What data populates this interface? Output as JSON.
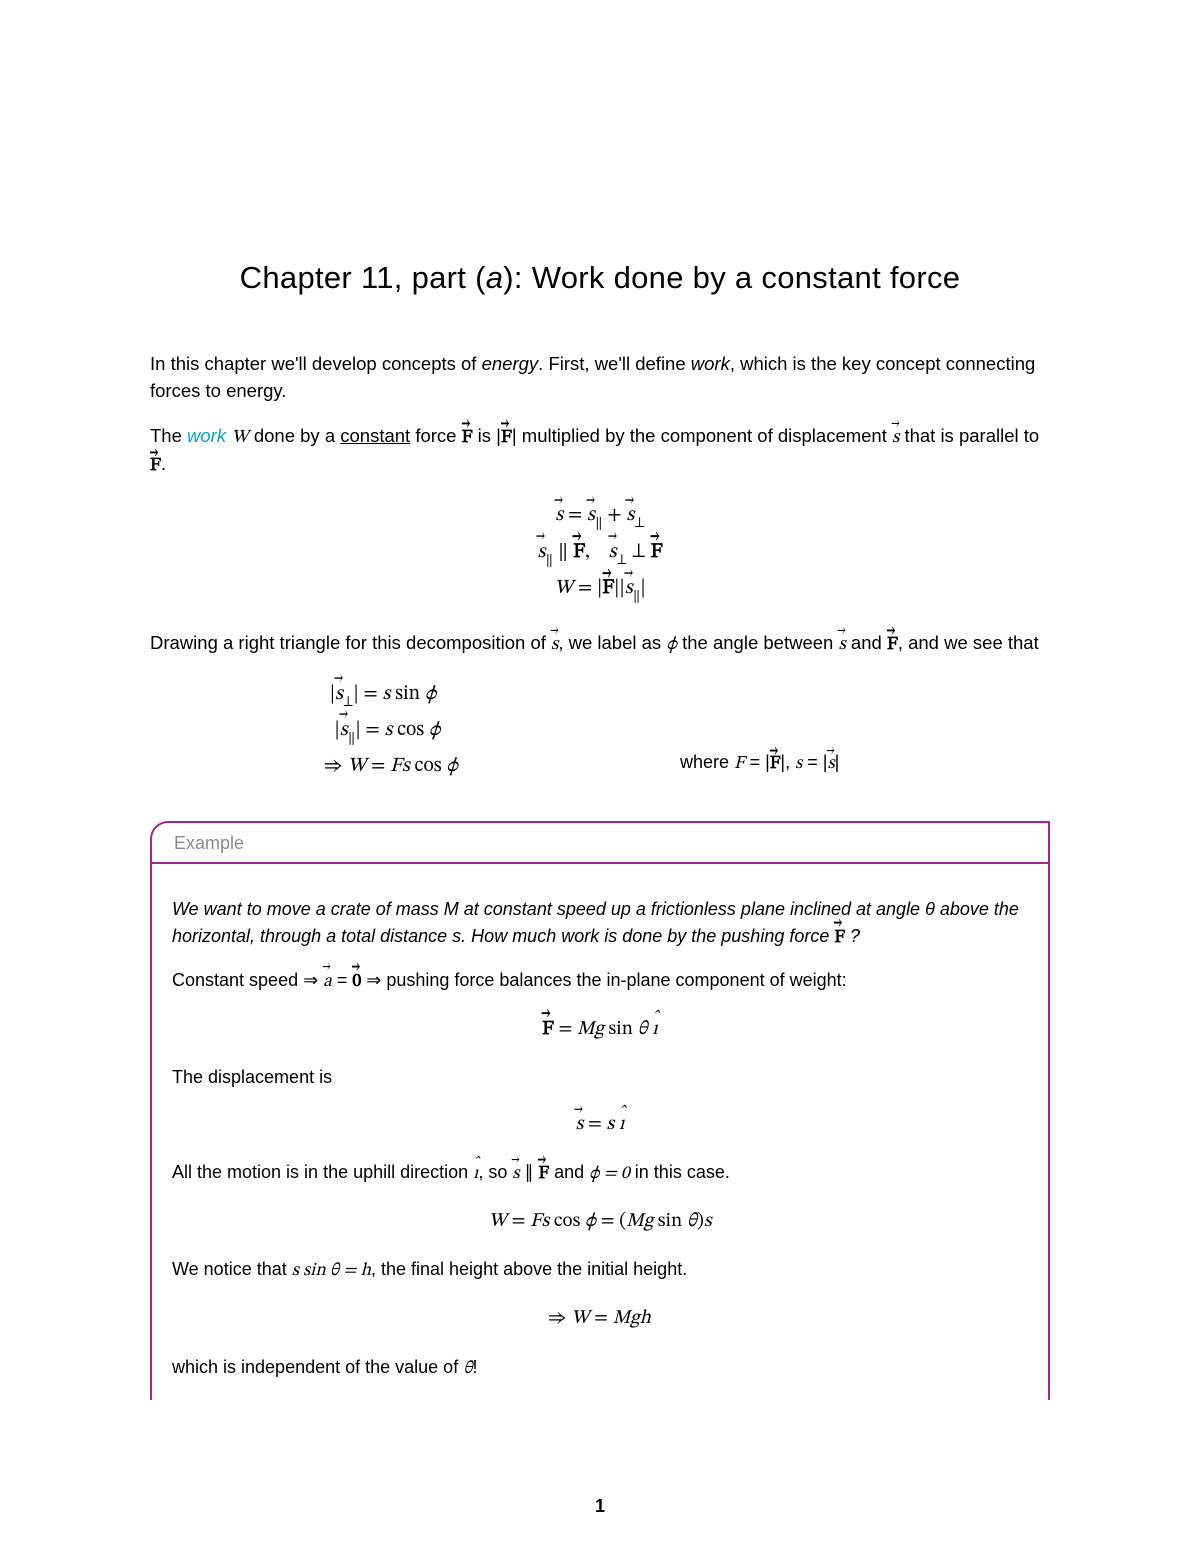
{
  "colors": {
    "text": "#000000",
    "link": "#0aa5c2",
    "box_border": "#a6258d",
    "example_label": "#8a8a8a",
    "background": "#ffffff"
  },
  "title": {
    "prefix": "Chapter 11, part (",
    "part": "a",
    "suffix": "): Work done by a constant force",
    "fontsize": 31
  },
  "intro": {
    "p1_a": "In this chapter we'll develop concepts of ",
    "p1_em": "energy",
    "p1_b": ". First, we'll define ",
    "p1_em2": "work",
    "p1_c": ", which is the key concept connecting forces to energy."
  },
  "def": {
    "a": "The ",
    "work": "work",
    "b": " ",
    "W": "W",
    "c": " done by a ",
    "const": "constant",
    "d": " force ",
    "e": " is |",
    "f": "| multiplied by the component of displacement ",
    "g": " that is parallel to ",
    "h": "."
  },
  "eq1": {
    "l1": "s⃗ = s⃗∥ + s⃗⊥",
    "l2": "s⃗∥ ∥ F⃗,   s⃗⊥ ⊥ F⃗",
    "l3": "W = |F⃗||s⃗∥|"
  },
  "para2": {
    "a": "Drawing a right triangle for this decomposition of ",
    "b": ", we label as ",
    "phi": "ϕ",
    "c": " the angle between ",
    "d": " and ",
    "e": ", and we see that"
  },
  "eq2": {
    "l1": "|s⃗⊥| = s sin ϕ",
    "l2": "|s⃗∥| = s cos ϕ",
    "l3": "⇒ W = Fs cos ϕ",
    "note_a": "where ",
    "note_b": "F = |F⃗|, s = |s⃗|"
  },
  "example": {
    "label": "Example",
    "question_a": "We want to move a crate of mass M at constant speed up a frictionless plane inclined at angle θ above the horizontal, through a total distance s. How much work is done by the pushing force ",
    "question_b": " ?",
    "p1_a": "Constant speed ⇒ ",
    "p1_b": " ⇒ pushing force balances the in-plane component of weight:",
    "eq1": "F⃗ = Mg sin θ î",
    "p2": "The displacement is",
    "eq2": "s⃗ = s î",
    "p3_a": "All the motion is in the uphill direction ",
    "p3_b": ", so ",
    "p3_c": " and ",
    "p3_phi": "ϕ = 0",
    "p3_d": " in this case.",
    "eq3": "W = Fs cos ϕ = (Mg sin θ)s",
    "p4_a": "We notice that ",
    "p4_b": "s sin θ = h",
    "p4_c": ", the final height above the initial height.",
    "eq4": "⇒ W = Mgh",
    "p5_a": "which is independent of the value of ",
    "p5_theta": "θ",
    "p5_b": "!"
  },
  "pagenum": "1"
}
